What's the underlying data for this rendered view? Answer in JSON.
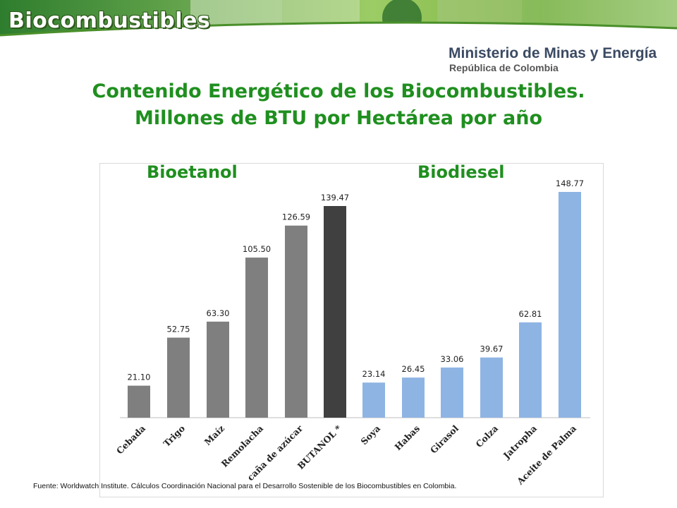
{
  "header": {
    "brand": "Biocombustibles",
    "ministry": "Ministerio de Minas y Energía",
    "republic": "República de Colombia"
  },
  "titles": {
    "line1": "Contenido Energético de los Biocombustibles.",
    "line2": "Millones de BTU por Hectárea por año"
  },
  "groups": {
    "left": "Bioetanol",
    "right": "Biodiesel"
  },
  "chart_data": {
    "type": "bar",
    "title": "",
    "xlabel": "",
    "ylabel": "",
    "ylim": [
      0,
      160
    ],
    "grid": false,
    "categories": [
      "Cebada",
      "Trigo",
      "Maíz",
      "Remolacha",
      "caña de azúcar",
      "BUTANOL *",
      "Soya",
      "Habas",
      "Girasol",
      "Colza",
      "Jatropha",
      "Aceite de Palma"
    ],
    "values": [
      21.1,
      52.75,
      63.3,
      105.5,
      126.59,
      139.47,
      23.14,
      26.45,
      33.06,
      39.67,
      62.81,
      148.77
    ],
    "value_labels": [
      "21.10",
      "52.75",
      "63.30",
      "105.50",
      "126.59",
      "139.47",
      "23.14",
      "26.45",
      "33.06",
      "39.67",
      "62.81",
      "148.77"
    ],
    "colors": [
      "#7f7f7f",
      "#7f7f7f",
      "#7f7f7f",
      "#7f7f7f",
      "#7f7f7f",
      "#404040",
      "#8eb4e3",
      "#8eb4e3",
      "#8eb4e3",
      "#8eb4e3",
      "#8eb4e3",
      "#8eb4e3"
    ]
  },
  "footer": {
    "source": "Fuente: Worldwatch Institute. Cálculos Coordinación Nacional para el Desarrollo Sostenible de los Biocombustibles en Colombia."
  }
}
